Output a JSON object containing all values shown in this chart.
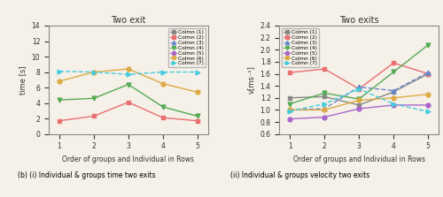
{
  "left_title": "Two exit",
  "right_title": "Two exits",
  "xlabel": "Order of groups and Individual in Rows",
  "left_ylabel": "time [s]",
  "right_ylabel": "v[ms⁻¹]",
  "x": [
    1,
    2,
    3,
    4,
    5
  ],
  "left_ylim": [
    0,
    14
  ],
  "right_ylim": [
    0.6,
    2.4
  ],
  "left_yticks": [
    0,
    2,
    4,
    6,
    8,
    10,
    12,
    14
  ],
  "right_yticks": [
    0.6,
    0.8,
    1.0,
    1.2,
    1.4,
    1.6,
    1.8,
    2.0,
    2.2,
    2.4
  ],
  "caption_left": "(b) (i) Individual & groups time two exits",
  "caption_right": "(ii) Individual & groups velocity two exits",
  "bg_color": "#f5f0e8",
  "series_left": [
    {
      "label": "Colmn (1)",
      "color": "#888888",
      "marker": "s",
      "linestyle": "-",
      "values": [
        null,
        null,
        null,
        null,
        null
      ]
    },
    {
      "label": "Colmn (2)",
      "color": "#e87070",
      "marker": "s",
      "linestyle": "-",
      "values": [
        1.7,
        2.3,
        4.1,
        2.1,
        1.7
      ]
    },
    {
      "label": "Colmn (3)",
      "color": "#6688cc",
      "marker": "^",
      "linestyle": "--",
      "values": [
        null,
        null,
        null,
        null,
        null
      ]
    },
    {
      "label": "Colmn (4)",
      "color": "#55aa55",
      "marker": "v",
      "linestyle": "-",
      "values": [
        4.4,
        4.6,
        6.4,
        3.5,
        2.3
      ]
    },
    {
      "label": "Colmn (5)",
      "color": "#aa66cc",
      "marker": "o",
      "linestyle": "-",
      "values": [
        null,
        null,
        null,
        null,
        null
      ]
    },
    {
      "label": "Colmn (6)",
      "color": "#ddaa44",
      "marker": "o",
      "linestyle": "-",
      "values": [
        6.8,
        8.0,
        8.4,
        6.5,
        5.4
      ]
    },
    {
      "label": "Colmn (7)",
      "color": "#44ccdd",
      "marker": ">",
      "linestyle": "--",
      "values": [
        8.1,
        8.0,
        7.7,
        8.0,
        8.0
      ]
    }
  ],
  "series_right": [
    {
      "label": "Colmn (1)",
      "color": "#888888",
      "marker": "s",
      "linestyle": "-",
      "values": [
        1.2,
        1.22,
        1.08,
        1.3,
        1.6
      ]
    },
    {
      "label": "Colmn (2)",
      "color": "#e87070",
      "marker": "s",
      "linestyle": "-",
      "values": [
        1.62,
        1.68,
        1.35,
        1.78,
        1.6
      ]
    },
    {
      "label": "Colmn (3)",
      "color": "#6688cc",
      "marker": "^",
      "linestyle": "--",
      "values": [
        1.0,
        1.02,
        1.38,
        1.32,
        1.62
      ]
    },
    {
      "label": "Colmn (4)",
      "color": "#55aa55",
      "marker": "v",
      "linestyle": "-",
      "values": [
        1.1,
        1.28,
        1.18,
        1.63,
        2.08
      ]
    },
    {
      "label": "Colmn (5)",
      "color": "#aa66cc",
      "marker": "o",
      "linestyle": "-",
      "values": [
        0.85,
        0.88,
        1.02,
        1.08,
        1.08
      ]
    },
    {
      "label": "Colmn (6)",
      "color": "#ddaa44",
      "marker": "o",
      "linestyle": "-",
      "values": [
        1.0,
        1.0,
        1.16,
        1.2,
        1.26
      ]
    },
    {
      "label": "Colmn (7)",
      "color": "#44ccdd",
      "marker": ">",
      "linestyle": "--",
      "values": [
        0.98,
        1.1,
        1.35,
        1.1,
        0.97
      ]
    }
  ]
}
